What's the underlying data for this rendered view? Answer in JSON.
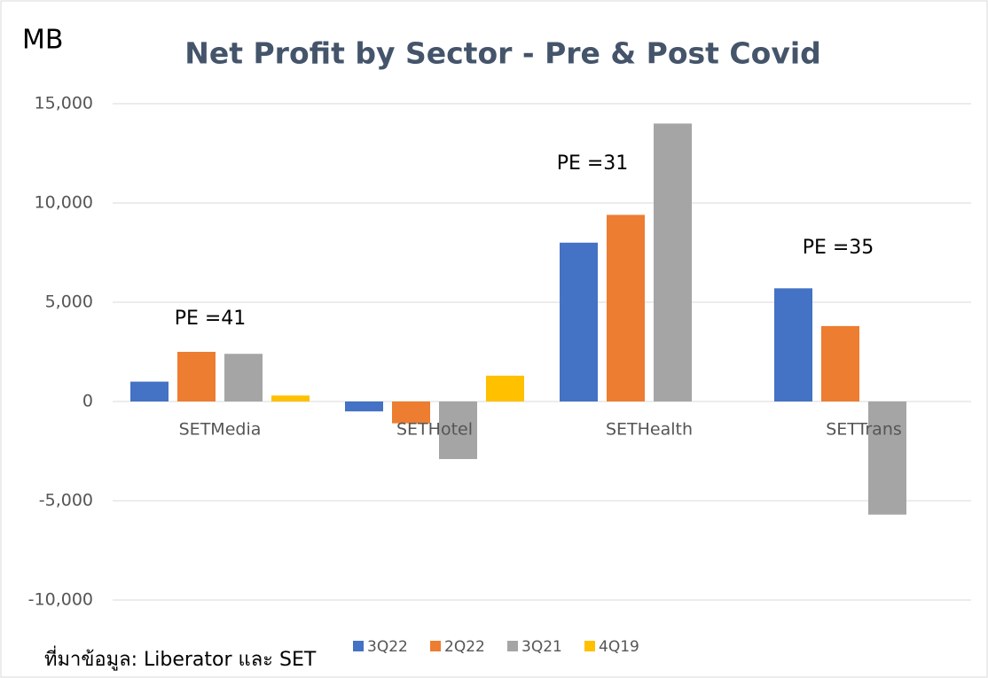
{
  "chart_data": {
    "type": "bar",
    "title": "Net Profit by Sector - Pre & Post Covid",
    "y_axis_label": "MB",
    "source": "ที่มาข้อมูล: Liberator และ SET",
    "annotations": [
      "PE =41",
      "PE =31",
      "PE =35"
    ],
    "categories": [
      "SETMedia",
      "SETHotel",
      "SETHealth",
      "SETTrans"
    ],
    "series": [
      {
        "name": "3Q22",
        "color": "#4472c4",
        "values": [
          1000,
          -500,
          8000,
          5700
        ]
      },
      {
        "name": "2Q22",
        "color": "#ed7d31",
        "values": [
          2500,
          -1100,
          9400,
          3800
        ]
      },
      {
        "name": "3Q21",
        "color": "#a5a5a5",
        "values": [
          2400,
          -2900,
          14000,
          -5700
        ]
      },
      {
        "name": "4Q19",
        "color": "#ffc000",
        "values": [
          300,
          1300,
          null,
          null
        ]
      }
    ],
    "ylim": [
      -10000,
      15000
    ],
    "yticks": [
      {
        "value": -10000,
        "label": "-10,000"
      },
      {
        "value": -5000,
        "label": "-5,000"
      },
      0,
      {
        "value": 5000,
        "label": "5,000"
      },
      {
        "value": 10000,
        "label": "10,000"
      },
      {
        "value": 15000,
        "label": "15,000"
      }
    ],
    "grid": true,
    "legend": "bottom"
  }
}
